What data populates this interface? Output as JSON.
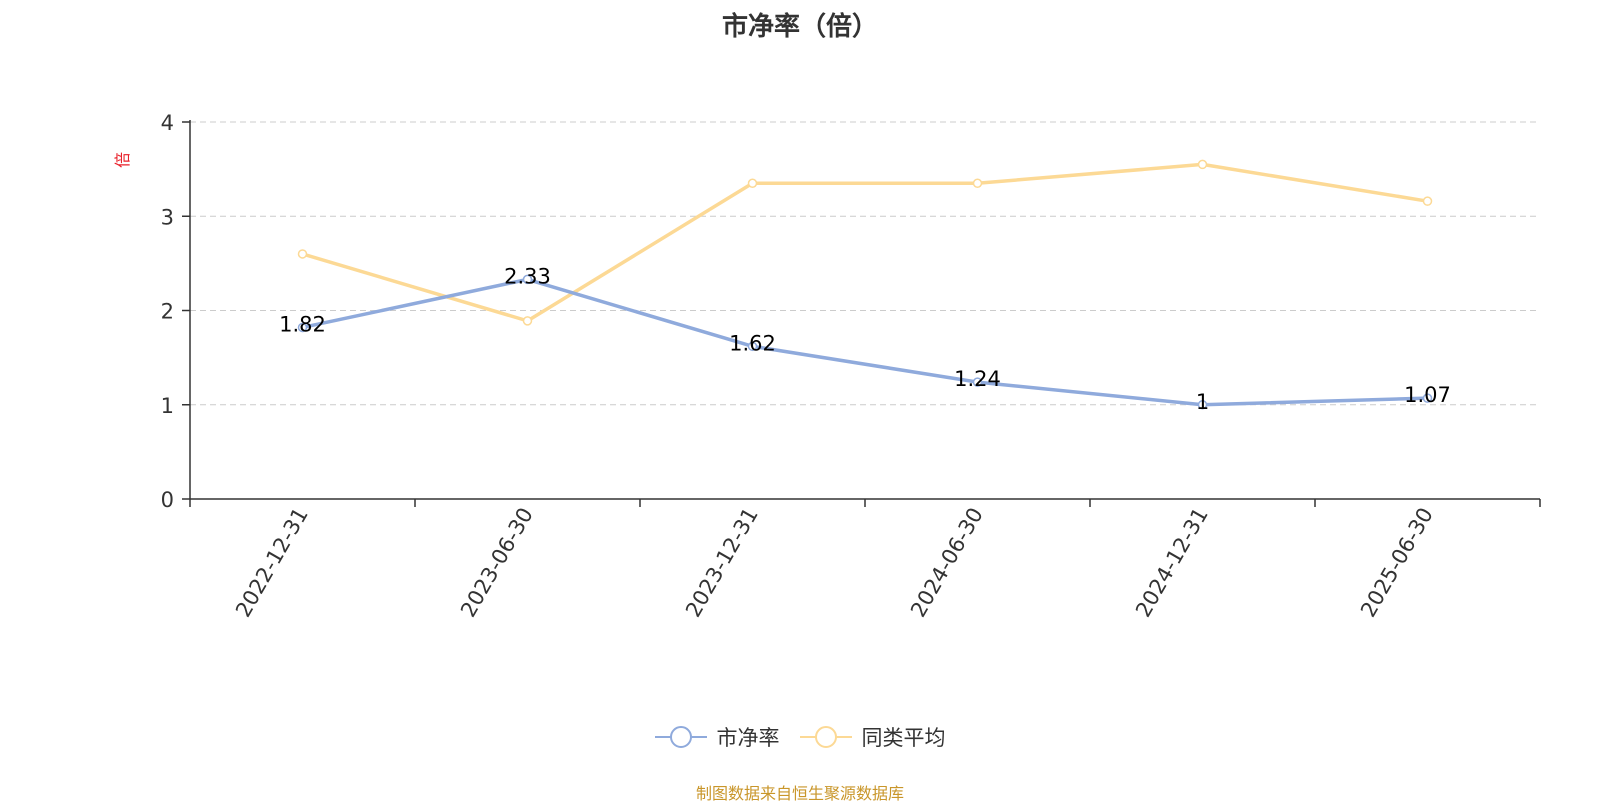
{
  "colors": {
    "series_pb": "#8faadc",
    "series_avg": "#fcd995",
    "unit_label": "#e8202a",
    "source_note": "#c9962a",
    "grid": "#cccccc",
    "axis": "#333333"
  },
  "chart_data": {
    "type": "line",
    "title": "市净率（倍）",
    "ylabel": "倍",
    "xlabel": "",
    "ylim": [
      0,
      4
    ],
    "yticks": [
      "0",
      "1",
      "2",
      "3",
      "4"
    ],
    "grid": true,
    "legend_position": "bottom-center",
    "categories": [
      "2022-12-31",
      "2023-06-30",
      "2023-12-31",
      "2024-06-30",
      "2024-12-31",
      "2025-06-30"
    ],
    "series": [
      {
        "name": "市净率",
        "values": [
          1.82,
          2.33,
          1.62,
          1.24,
          1,
          1.07
        ],
        "labels": [
          "1.82",
          "2.33",
          "1.62",
          "1.24",
          "1",
          "1.07"
        ]
      },
      {
        "name": "同类平均",
        "values": [
          2.6,
          1.89,
          3.35,
          3.35,
          3.55,
          3.16
        ]
      }
    ]
  },
  "source_note": "制图数据来自恒生聚源数据库"
}
